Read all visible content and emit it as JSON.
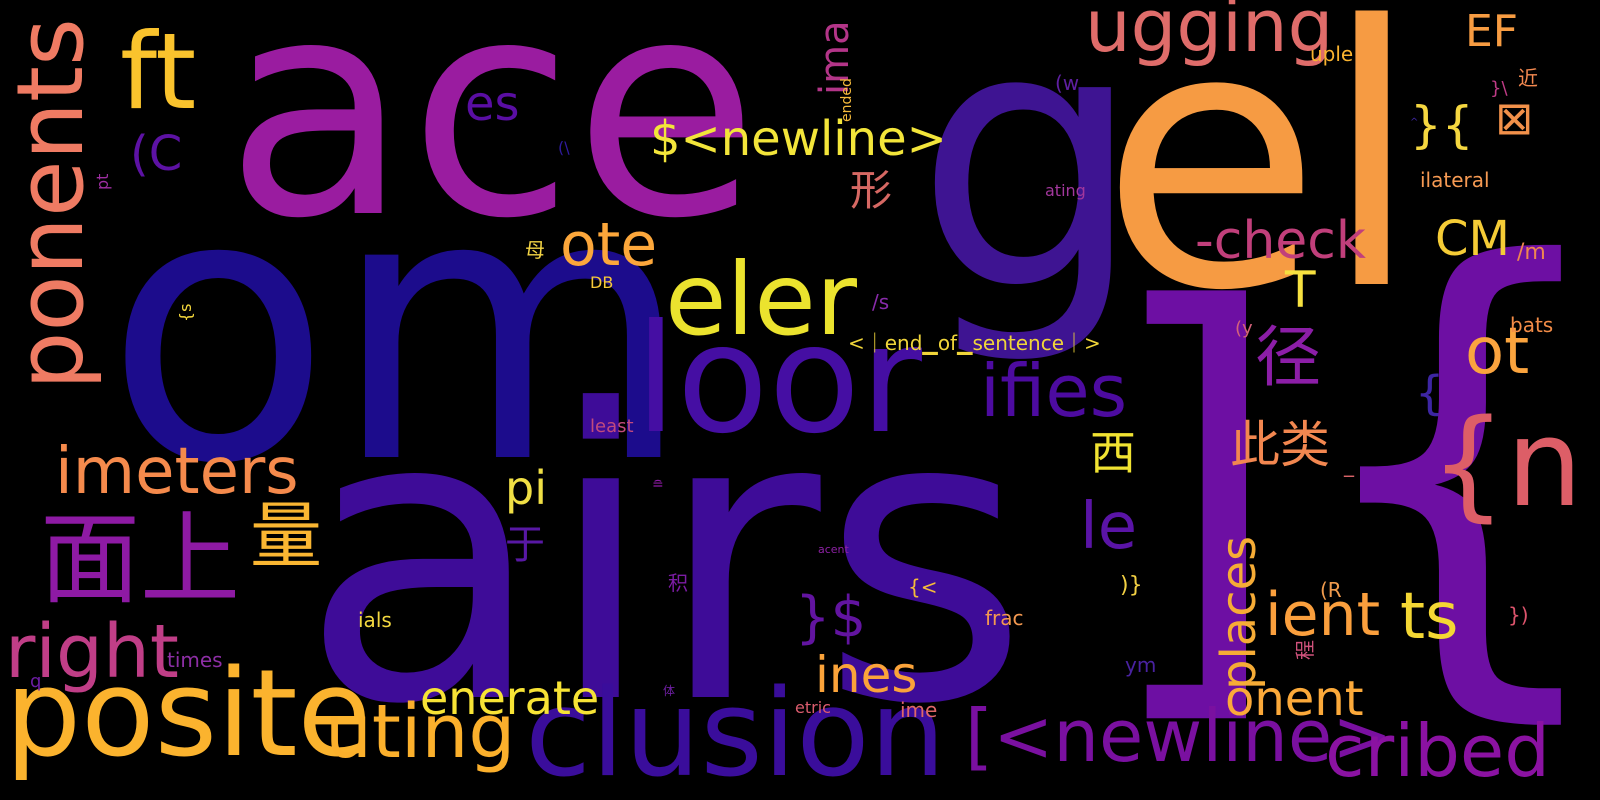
{
  "words": {
    "g": "g",
    "ace": "ace",
    "om": "om",
    "airs": "airs",
    "el": "el",
    "brace_close": "]",
    "brace_open": "{",
    "loor": "loor",
    "clusion": "clusion",
    "posite": "posite",
    "eler": "eler",
    "ponents": "ponents",
    "ft": "ft",
    "ugging": "ugging",
    "newline1": "[<newline>",
    "cribed": "cribed",
    "ient": "ient",
    "ts": "ts",
    "uting": "uting",
    "right": "right",
    "imeters": "imeters",
    "mianshang": "面上",
    "liang": "量",
    "ifies": "ifies",
    "n": "{n",
    "ot": "ot",
    "check": "-check",
    "CM": "CM",
    "slashm": "/m",
    "ote": "ote",
    "newline2": "$<newline>",
    "pi": "pi",
    "le": "le",
    "ines": "ines",
    "enerate": "enerate",
    "onent": "onent",
    "places": "places",
    "cilei": "此类",
    "jing": "径",
    "xi": "西",
    "xing": "形",
    "yu": "于",
    "dollar1": "}$",
    "es": "es",
    "C": "(C",
    "T": "T",
    "EF": "EF",
    "dbrace": "}{",
    "box": "⊠",
    "ima": "ima",
    "eos": "<｜end▁of▁sentence｜>",
    "brace2": "{",
    "ilateral": "ilateral",
    "uple": "uple",
    "bats": "bats",
    "ating": "ating",
    "slashs": "/s",
    "paren_y": "(y",
    "paren_w": "(w",
    "close_brace_paren": ")}",
    "R": "(R",
    "paren2": "})",
    "ym": "ym",
    "ials": "ials",
    "frac": "frac",
    "times": "times",
    "least": "least",
    "DB": "DB",
    "etric": "etric",
    "ime": "ime",
    "acent": "acent",
    "ji": "积",
    "cheng": "程",
    "jin": "近",
    "slash_close": "}\\",
    "mu": "母",
    "q": "q",
    "ti": "体",
    "pt": "pt",
    "s_brace": "{s",
    "ended": "ended",
    "paren_backslash": "(\\",
    "glyph1": "≘",
    "curly_less": "{<",
    "bar": "_",
    "tiny_dot": "^"
  }
}
